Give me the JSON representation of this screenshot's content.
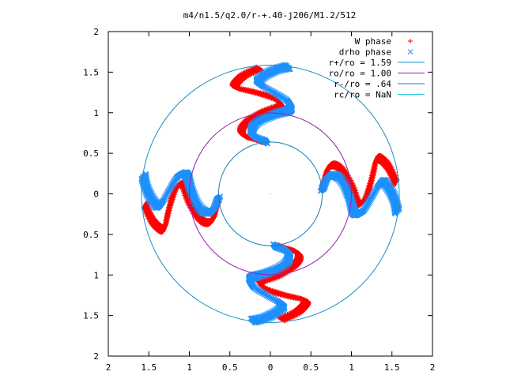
{
  "chart_data": {
    "type": "scatter",
    "title": "m4/n1.5/q2.0/r-+.40-j206/M1.2/512",
    "xlim": [
      -2,
      2
    ],
    "ylim": [
      -2,
      2
    ],
    "x_ticks": [
      {
        "value": -2,
        "label": "2"
      },
      {
        "value": -1.5,
        "label": "1.5"
      },
      {
        "value": -1,
        "label": "1"
      },
      {
        "value": -0.5,
        "label": "0.5"
      },
      {
        "value": 0,
        "label": "0"
      },
      {
        "value": 0.5,
        "label": "0.5"
      },
      {
        "value": 1,
        "label": "1"
      },
      {
        "value": 1.5,
        "label": "1.5"
      },
      {
        "value": 2,
        "label": "2"
      }
    ],
    "y_ticks": [
      {
        "value": 2,
        "label": "2"
      },
      {
        "value": 1.5,
        "label": "1.5"
      },
      {
        "value": 1,
        "label": "1"
      },
      {
        "value": 0.5,
        "label": "0.5"
      },
      {
        "value": 0,
        "label": "0"
      },
      {
        "value": -0.5,
        "label": "0.5"
      },
      {
        "value": -1,
        "label": "1"
      },
      {
        "value": -1.5,
        "label": "1.5"
      },
      {
        "value": -2,
        "label": "2"
      }
    ],
    "grid": false,
    "legend_position": "top-right",
    "circles": [
      {
        "name": "r+/ro = 1.59",
        "radius": 1.59,
        "color": "#1a8fc2"
      },
      {
        "name": "ro/ro = 1.00",
        "radius": 1.0,
        "color": "#9b1fb0"
      },
      {
        "name": "r-/ro = .64",
        "radius": 0.64,
        "color": "#1a7fb8"
      },
      {
        "name": "rc/ro = NaN",
        "radius": null,
        "color": "#22c8e0"
      }
    ],
    "series": [
      {
        "name": "W phase",
        "marker": "+",
        "color": "#ff0000",
        "arm_polar": [
          [
            0.66,
            10
          ],
          [
            0.78,
            24
          ],
          [
            0.9,
            22
          ],
          [
            1.0,
            6
          ],
          [
            1.08,
            -6
          ],
          [
            1.16,
            -4
          ],
          [
            1.26,
            8
          ],
          [
            1.38,
            18
          ],
          [
            1.48,
            14
          ],
          [
            1.55,
            5
          ]
        ]
      },
      {
        "name": "drho phase",
        "marker": "x",
        "color": "#1e90ff",
        "arm_polar": [
          [
            0.64,
            4
          ],
          [
            0.74,
            16
          ],
          [
            0.86,
            14
          ],
          [
            0.96,
            0
          ],
          [
            1.05,
            -12
          ],
          [
            1.14,
            -12
          ],
          [
            1.25,
            -2
          ],
          [
            1.38,
            6
          ],
          [
            1.5,
            0
          ],
          [
            1.58,
            -8
          ]
        ]
      }
    ],
    "arm_rotations_deg": [
      0,
      90,
      180,
      270
    ]
  }
}
